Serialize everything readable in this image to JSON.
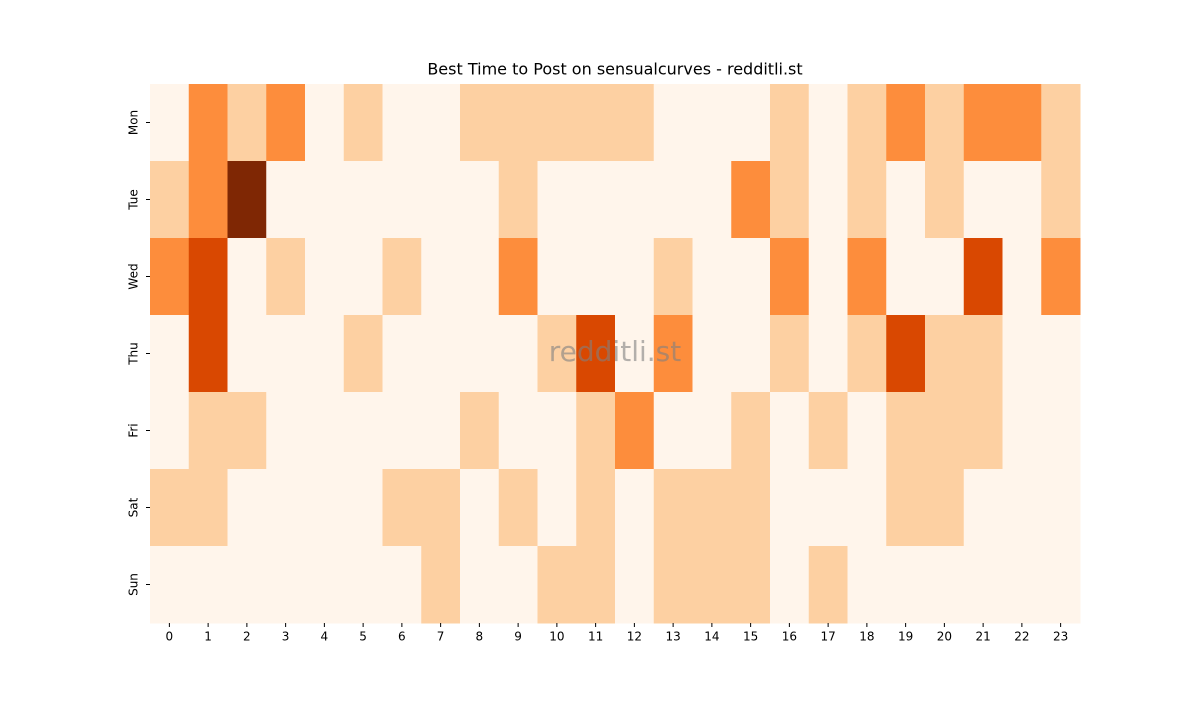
{
  "chart_data": {
    "type": "heatmap",
    "title": "Best Time to Post on sensualcurves - redditli.st",
    "watermark": "redditli.st",
    "x": [
      0,
      1,
      2,
      3,
      4,
      5,
      6,
      7,
      8,
      9,
      10,
      11,
      12,
      13,
      14,
      15,
      16,
      17,
      18,
      19,
      20,
      21,
      22,
      23
    ],
    "y": [
      "Mon",
      "Tue",
      "Wed",
      "Thu",
      "Fri",
      "Sat",
      "Sun"
    ],
    "z": [
      [
        0,
        2,
        1,
        2,
        0,
        1,
        0,
        0,
        1,
        1,
        1,
        1,
        1,
        0,
        0,
        0,
        1,
        0,
        1,
        2,
        1,
        2,
        2,
        1
      ],
      [
        1,
        2,
        4,
        0,
        0,
        0,
        0,
        0,
        0,
        1,
        0,
        0,
        0,
        0,
        0,
        2,
        1,
        0,
        1,
        0,
        1,
        0,
        0,
        1
      ],
      [
        2,
        3,
        0,
        1,
        0,
        0,
        1,
        0,
        0,
        2,
        0,
        0,
        0,
        1,
        0,
        0,
        2,
        0,
        2,
        0,
        0,
        3,
        0,
        2
      ],
      [
        0,
        3,
        0,
        0,
        0,
        1,
        0,
        0,
        0,
        0,
        1,
        3,
        0,
        2,
        0,
        0,
        1,
        0,
        1,
        3,
        1,
        1,
        0,
        0
      ],
      [
        0,
        1,
        1,
        0,
        0,
        0,
        0,
        0,
        1,
        0,
        0,
        1,
        2,
        0,
        0,
        1,
        0,
        1,
        0,
        1,
        1,
        1,
        0,
        0
      ],
      [
        1,
        1,
        0,
        0,
        0,
        0,
        1,
        1,
        0,
        1,
        0,
        1,
        0,
        1,
        1,
        1,
        0,
        0,
        0,
        1,
        1,
        0,
        0,
        0
      ],
      [
        0,
        0,
        0,
        0,
        0,
        0,
        0,
        1,
        0,
        0,
        1,
        1,
        0,
        1,
        1,
        1,
        0,
        1,
        0,
        0,
        0,
        0,
        0,
        0
      ]
    ],
    "colorscale": [
      "#fff5eb",
      "#fdd0a2",
      "#fd8d3c",
      "#d94801",
      "#7f2704"
    ]
  }
}
